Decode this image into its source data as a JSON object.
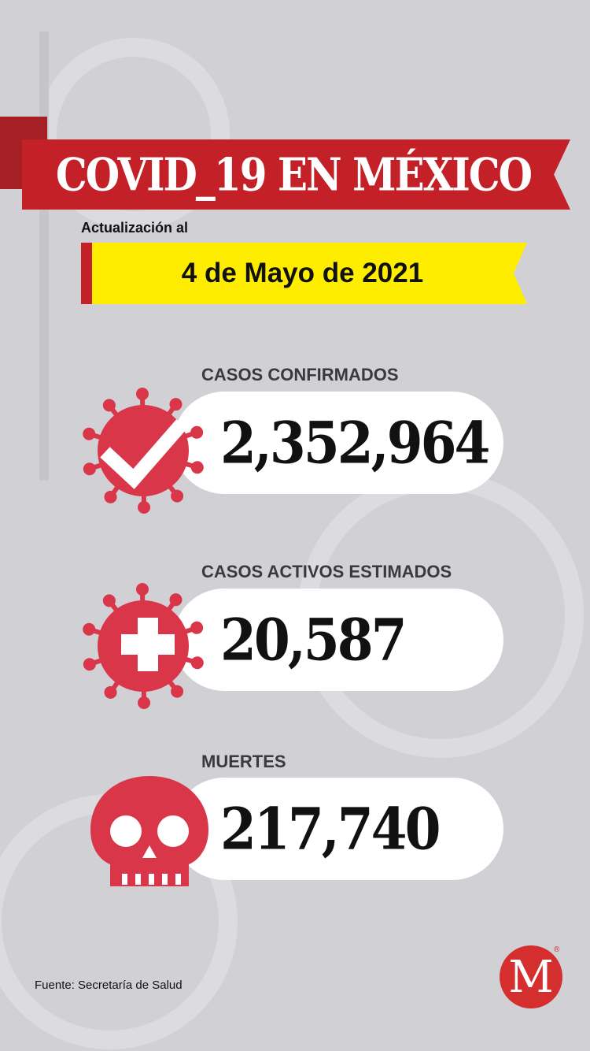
{
  "title": "COVID_19 EN MÉXICO",
  "update_label": "Actualización al",
  "date": "4 de Mayo de 2021",
  "stats": [
    {
      "label": "CASOS CONFIRMADOS",
      "value": "2,352,964",
      "icon": "virus-check-icon"
    },
    {
      "label": "CASOS ACTIVOS ESTIMADOS",
      "value": "20,587",
      "icon": "virus-plus-icon"
    },
    {
      "label": "MUERTES",
      "value": "217,740",
      "icon": "skull-icon"
    }
  ],
  "source": "Fuente: Secretaría de Salud",
  "logo": {
    "letter": "M",
    "registered": "®"
  },
  "colors": {
    "background": "#d1d0d5",
    "red": "#c32127",
    "yellow": "#ffed00",
    "icon_red": "#d9364a"
  }
}
